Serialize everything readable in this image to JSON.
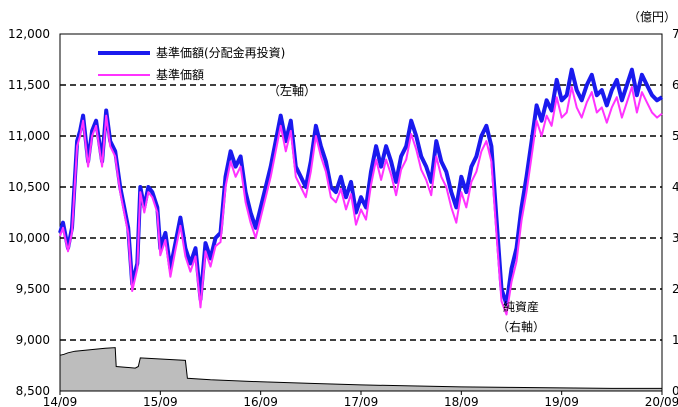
{
  "chart_data": {
    "type": "line",
    "title": "",
    "xlabel": "",
    "ylabel": "",
    "unit_right": "（億円）",
    "y_left": {
      "lim": [
        8500,
        12000
      ],
      "ticks": [
        "12,000",
        "11,500",
        "11,000",
        "10,500",
        "10,000",
        "9,500",
        "9,000",
        "8,500"
      ]
    },
    "y_right": {
      "lim": [
        0,
        7
      ],
      "ticks": [
        "7",
        "6",
        "5",
        "4",
        "3",
        "2",
        "1",
        "0"
      ]
    },
    "x_ticks": [
      "14/09",
      "15/09",
      "16/09",
      "17/09",
      "18/09",
      "19/09",
      "20/09"
    ],
    "legend": [
      {
        "name": "基準価額(分配金再投資)",
        "color": "#1a1aee"
      },
      {
        "name": "基準価額",
        "color": "#ff33ff"
      }
    ],
    "annotations": {
      "left_axis": "（左軸）",
      "net_assets": "純資産",
      "right_axis": "（右軸）"
    },
    "series": [
      {
        "name": "基準価額(分配金再投資)",
        "axis": "left",
        "color": "#1a1aee",
        "x": [
          0,
          0.03,
          0.08,
          0.12,
          0.17,
          0.2,
          0.23,
          0.28,
          0.32,
          0.36,
          0.42,
          0.46,
          0.5,
          0.55,
          0.6,
          0.64,
          0.68,
          0.72,
          0.77,
          0.8,
          0.84,
          0.88,
          0.92,
          0.97,
          1.0,
          1.05,
          1.1,
          1.15,
          1.2,
          1.25,
          1.3,
          1.35,
          1.4,
          1.45,
          1.5,
          1.55,
          1.6,
          1.65,
          1.7,
          1.75,
          1.8,
          1.85,
          1.9,
          1.95,
          2.0,
          2.05,
          2.1,
          2.15,
          2.2,
          2.25,
          2.3,
          2.35,
          2.4,
          2.45,
          2.5,
          2.55,
          2.6,
          2.65,
          2.7,
          2.75,
          2.8,
          2.85,
          2.9,
          2.95,
          3.0,
          3.05,
          3.1,
          3.15,
          3.2,
          3.25,
          3.3,
          3.35,
          3.4,
          3.45,
          3.5,
          3.55,
          3.6,
          3.65,
          3.7,
          3.75,
          3.8,
          3.85,
          3.9,
          3.95,
          4.0,
          4.05,
          4.1,
          4.15,
          4.2,
          4.25,
          4.3,
          4.35,
          4.4,
          4.45,
          4.5,
          4.55,
          4.6,
          4.65,
          4.7,
          4.75,
          4.8,
          4.85,
          4.9,
          4.95,
          5.0,
          5.05,
          5.1,
          5.15,
          5.2,
          5.25,
          5.3,
          5.35,
          5.4,
          5.45,
          5.5,
          5.55,
          5.6,
          5.65,
          5.7,
          5.75,
          5.8,
          5.85,
          5.9,
          5.95,
          6.0
        ],
        "values": [
          10050,
          10150,
          9900,
          10100,
          10950,
          11050,
          11200,
          10750,
          11050,
          11150,
          10750,
          11250,
          10950,
          10850,
          10500,
          10300,
          10100,
          9550,
          9750,
          10500,
          10300,
          10500,
          10450,
          10300,
          9900,
          10050,
          9700,
          9950,
          10200,
          9900,
          9750,
          9900,
          9400,
          9950,
          9800,
          10000,
          10050,
          10600,
          10850,
          10700,
          10800,
          10450,
          10250,
          10100,
          10300,
          10500,
          10700,
          10950,
          11200,
          10950,
          11150,
          10700,
          10600,
          10500,
          10750,
          11100,
          10900,
          10750,
          10500,
          10450,
          10600,
          10400,
          10550,
          10250,
          10400,
          10300,
          10650,
          10900,
          10700,
          10900,
          10750,
          10550,
          10800,
          10900,
          11150,
          11000,
          10800,
          10700,
          10550,
          10950,
          10750,
          10650,
          10450,
          10300,
          10600,
          10450,
          10700,
          10800,
          11000,
          11100,
          10900,
          10200,
          9500,
          9350,
          9700,
          9900,
          10300,
          10600,
          10950,
          11300,
          11150,
          11350,
          11250,
          11550,
          11350,
          11400,
          11650,
          11450,
          11350,
          11500,
          11600,
          11400,
          11450,
          11300,
          11450,
          11550,
          11350,
          11500,
          11650,
          11400,
          11600,
          11500,
          11400,
          11350,
          11380
        ]
      },
      {
        "name": "基準価額",
        "axis": "left",
        "color": "#ff33ff",
        "x": [
          0,
          0.03,
          0.08,
          0.12,
          0.17,
          0.2,
          0.23,
          0.28,
          0.32,
          0.36,
          0.42,
          0.46,
          0.5,
          0.55,
          0.6,
          0.64,
          0.68,
          0.72,
          0.77,
          0.8,
          0.84,
          0.88,
          0.92,
          0.97,
          1.0,
          1.05,
          1.1,
          1.15,
          1.2,
          1.25,
          1.3,
          1.35,
          1.4,
          1.45,
          1.5,
          1.55,
          1.6,
          1.65,
          1.7,
          1.75,
          1.8,
          1.85,
          1.9,
          1.95,
          2.0,
          2.05,
          2.1,
          2.15,
          2.2,
          2.25,
          2.3,
          2.35,
          2.4,
          2.45,
          2.5,
          2.55,
          2.6,
          2.65,
          2.7,
          2.75,
          2.8,
          2.85,
          2.9,
          2.95,
          3.0,
          3.05,
          3.1,
          3.15,
          3.2,
          3.25,
          3.3,
          3.35,
          3.4,
          3.45,
          3.5,
          3.55,
          3.6,
          3.65,
          3.7,
          3.75,
          3.8,
          3.85,
          3.9,
          3.95,
          4.0,
          4.05,
          4.1,
          4.15,
          4.2,
          4.25,
          4.3,
          4.35,
          4.4,
          4.45,
          4.5,
          4.55,
          4.6,
          4.65,
          4.7,
          4.75,
          4.8,
          4.85,
          4.9,
          4.95,
          5.0,
          5.05,
          5.1,
          5.15,
          5.2,
          5.25,
          5.3,
          5.35,
          5.4,
          5.45,
          5.5,
          5.55,
          5.6,
          5.65,
          5.7,
          5.75,
          5.8,
          5.85,
          5.9,
          5.95,
          6.0
        ],
        "values": [
          10020,
          10100,
          9870,
          10060,
          10900,
          11000,
          11150,
          10700,
          11000,
          11100,
          10700,
          11200,
          10900,
          10800,
          10450,
          10250,
          10050,
          9480,
          9700,
          10450,
          10250,
          10450,
          10400,
          10250,
          9830,
          9980,
          9620,
          9880,
          10120,
          9820,
          9670,
          9820,
          9320,
          9870,
          9720,
          9920,
          9960,
          10500,
          10750,
          10600,
          10700,
          10350,
          10150,
          10000,
          10200,
          10400,
          10600,
          10850,
          11100,
          10850,
          11050,
          10600,
          10500,
          10400,
          10650,
          11000,
          10800,
          10650,
          10400,
          10350,
          10480,
          10280,
          10430,
          10130,
          10280,
          10180,
          10520,
          10770,
          10570,
          10770,
          10620,
          10420,
          10670,
          10770,
          11020,
          10870,
          10670,
          10570,
          10420,
          10800,
          10600,
          10500,
          10300,
          10150,
          10450,
          10300,
          10550,
          10650,
          10850,
          10950,
          10750,
          10050,
          9380,
          9250,
          9570,
          9770,
          10170,
          10450,
          10800,
          11150,
          11000,
          11200,
          11100,
          11380,
          11180,
          11230,
          11480,
          11280,
          11180,
          11330,
          11430,
          11230,
          11280,
          11130,
          11280,
          11380,
          11180,
          11330,
          11480,
          11230,
          11430,
          11330,
          11230,
          11180,
          11220
        ]
      },
      {
        "name": "純資産",
        "axis": "right",
        "color": "#bdbdbd",
        "type": "area",
        "x": [
          0,
          0.04,
          0.08,
          0.15,
          0.25,
          0.35,
          0.45,
          0.55,
          0.56,
          0.75,
          0.78,
          0.8,
          1.25,
          1.27,
          1.5,
          2.0,
          2.5,
          3.0,
          3.5,
          4.0,
          4.5,
          5.0,
          5.5,
          6.0
        ],
        "values": [
          0.7,
          0.72,
          0.75,
          0.78,
          0.8,
          0.82,
          0.84,
          0.85,
          0.48,
          0.45,
          0.48,
          0.65,
          0.6,
          0.25,
          0.22,
          0.18,
          0.15,
          0.12,
          0.1,
          0.08,
          0.07,
          0.06,
          0.05,
          0.05
        ]
      }
    ]
  }
}
